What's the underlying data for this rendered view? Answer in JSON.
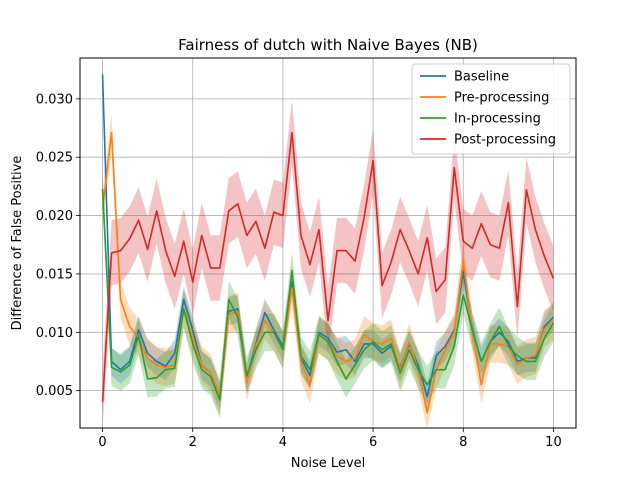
{
  "chart_data": {
    "type": "line",
    "title": "Fairness of dutch with Naive Bayes (NB)",
    "xlabel": "Noise Level",
    "ylabel": "Difference of False Positive",
    "xlim": [
      -0.5,
      10.5
    ],
    "ylim": [
      0.0018,
      0.0335
    ],
    "xticks": [
      0,
      2,
      4,
      6,
      8,
      10
    ],
    "yticks": [
      0.005,
      0.01,
      0.015,
      0.02,
      0.025,
      0.03
    ],
    "ytick_labels": [
      "0.005",
      "0.010",
      "0.015",
      "0.020",
      "0.025",
      "0.030"
    ],
    "grid": true,
    "legend_position": "top-right",
    "x": [
      0.0,
      0.2,
      0.4,
      0.6,
      0.8,
      1.0,
      1.2,
      1.4,
      1.6,
      1.8,
      2.0,
      2.2,
      2.4,
      2.6,
      2.8,
      3.0,
      3.2,
      3.4,
      3.6,
      3.8,
      4.0,
      4.2,
      4.4,
      4.6,
      4.8,
      5.0,
      5.2,
      5.4,
      5.6,
      5.8,
      6.0,
      6.2,
      6.4,
      6.6,
      6.8,
      7.0,
      7.2,
      7.4,
      7.6,
      7.8,
      8.0,
      8.2,
      8.4,
      8.6,
      8.8,
      9.0,
      9.2,
      9.4,
      9.6,
      9.8,
      10.0
    ],
    "series": [
      {
        "name": "Baseline",
        "color": "#1f77b4",
        "values": [
          0.0321,
          0.0075,
          0.0068,
          0.0075,
          0.0102,
          0.0082,
          0.0075,
          0.0071,
          0.0082,
          0.0128,
          0.0102,
          0.0072,
          0.0065,
          0.0045,
          0.0118,
          0.012,
          0.006,
          0.009,
          0.0117,
          0.0102,
          0.0088,
          0.0143,
          0.0078,
          0.0063,
          0.01,
          0.0095,
          0.0083,
          0.0085,
          0.0075,
          0.009,
          0.009,
          0.0082,
          0.0088,
          0.007,
          0.009,
          0.0072,
          0.0045,
          0.008,
          0.0088,
          0.0102,
          0.0152,
          0.0103,
          0.0075,
          0.0092,
          0.01,
          0.0092,
          0.0075,
          0.0078,
          0.0078,
          0.0105,
          0.0113
        ],
        "band": 0.0012
      },
      {
        "name": "Pre-processing",
        "color": "#ff7f0e",
        "values": [
          0.0205,
          0.0271,
          0.0128,
          0.0105,
          0.0095,
          0.0078,
          0.0072,
          0.007,
          0.0072,
          0.012,
          0.0095,
          0.0072,
          0.0065,
          0.0045,
          0.0115,
          0.0118,
          0.0057,
          0.0088,
          0.011,
          0.01,
          0.0085,
          0.0138,
          0.0075,
          0.0055,
          0.0098,
          0.0092,
          0.008,
          0.0075,
          0.0078,
          0.0098,
          0.0092,
          0.009,
          0.0095,
          0.0068,
          0.0092,
          0.0068,
          0.0031,
          0.0068,
          0.0085,
          0.01,
          0.0162,
          0.01,
          0.0055,
          0.009,
          0.009,
          0.0088,
          0.0072,
          0.0078,
          0.008,
          0.0103,
          0.011
        ],
        "band": 0.0016
      },
      {
        "name": "In-processing",
        "color": "#2ca02c",
        "values": [
          0.0223,
          0.007,
          0.0066,
          0.0072,
          0.0097,
          0.006,
          0.0061,
          0.0068,
          0.0069,
          0.012,
          0.009,
          0.0068,
          0.0062,
          0.0042,
          0.0128,
          0.0113,
          0.0063,
          0.0085,
          0.01,
          0.01,
          0.0085,
          0.0153,
          0.008,
          0.0068,
          0.0098,
          0.0092,
          0.0075,
          0.006,
          0.0072,
          0.0085,
          0.0092,
          0.0085,
          0.009,
          0.0065,
          0.0085,
          0.0068,
          0.0055,
          0.0068,
          0.0068,
          0.0088,
          0.0132,
          0.0102,
          0.0075,
          0.0092,
          0.0105,
          0.0088,
          0.008,
          0.0075,
          0.0075,
          0.0095,
          0.0108
        ],
        "band": 0.0016
      },
      {
        "name": "Post-processing",
        "color": "#d62728",
        "values": [
          0.004,
          0.0168,
          0.017,
          0.018,
          0.0196,
          0.0171,
          0.0204,
          0.017,
          0.0148,
          0.0178,
          0.0143,
          0.0183,
          0.0155,
          0.0155,
          0.0204,
          0.021,
          0.0183,
          0.0195,
          0.0172,
          0.0203,
          0.02,
          0.0271,
          0.0183,
          0.0158,
          0.0188,
          0.011,
          0.017,
          0.017,
          0.0161,
          0.0198,
          0.0247,
          0.014,
          0.016,
          0.0188,
          0.017,
          0.015,
          0.0181,
          0.0135,
          0.0145,
          0.0241,
          0.0178,
          0.0172,
          0.0193,
          0.0175,
          0.0172,
          0.0211,
          0.0122,
          0.0222,
          0.0188,
          0.0165,
          0.0146
        ],
        "band": 0.0028
      }
    ]
  }
}
